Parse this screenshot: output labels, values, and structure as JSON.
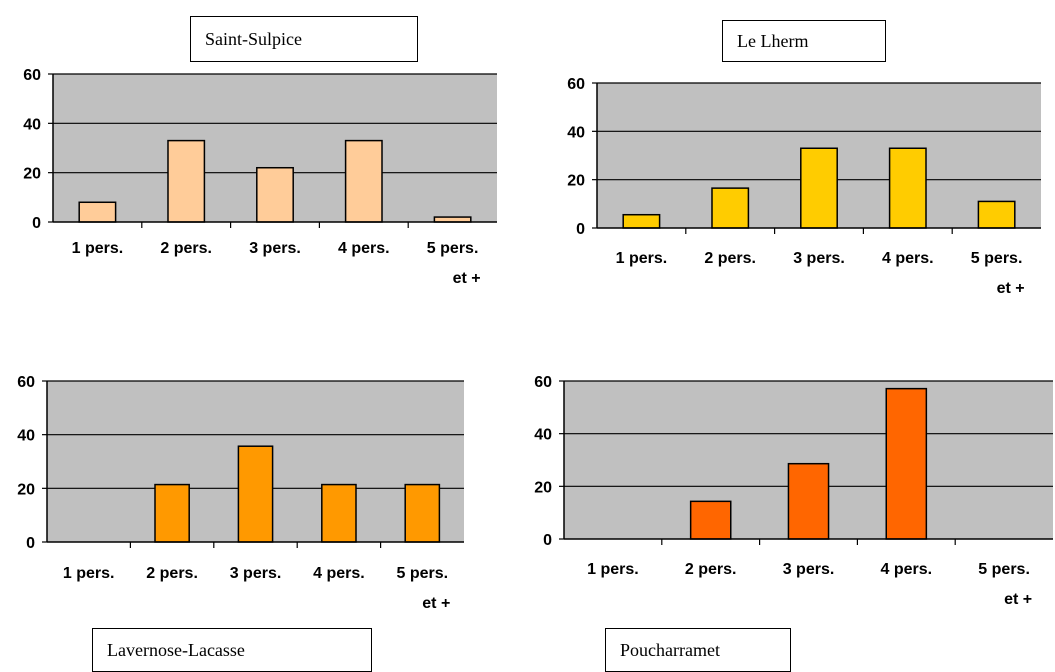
{
  "chart_data": [
    {
      "type": "bar",
      "title": "Saint-Sulpice",
      "categories": [
        "1 pers.",
        "2 pers.",
        "3 pers.",
        "4 pers.",
        "5 pers. et +"
      ],
      "values": [
        8,
        33,
        22,
        33,
        2
      ],
      "ylim": [
        0,
        60
      ],
      "yticks": [
        "0",
        "20",
        "40",
        "60"
      ],
      "color": "#FFCC99",
      "grid": true,
      "xlabel": "",
      "ylabel": ""
    },
    {
      "type": "bar",
      "title": "Le Lherm",
      "categories": [
        "1 pers.",
        "2 pers.",
        "3 pers.",
        "4 pers.",
        "5 pers. et +"
      ],
      "values": [
        5.5,
        16.5,
        33,
        33,
        11
      ],
      "ylim": [
        0,
        60
      ],
      "yticks": [
        "0",
        "20",
        "40",
        "60"
      ],
      "color": "#FFCC00",
      "grid": true,
      "xlabel": "",
      "ylabel": ""
    },
    {
      "type": "bar",
      "title": "Lavernose-Lacasse",
      "categories": [
        "1 pers.",
        "2 pers.",
        "3 pers.",
        "4 pers.",
        "5 pers. et +"
      ],
      "values": [
        0,
        21.4,
        35.7,
        21.4,
        21.4
      ],
      "ylim": [
        0,
        60
      ],
      "yticks": [
        "0",
        "20",
        "40",
        "60"
      ],
      "color": "#FF9900",
      "grid": true,
      "xlabel": "",
      "ylabel": ""
    },
    {
      "type": "bar",
      "title": "Poucharramet",
      "categories": [
        "1 pers.",
        "2 pers.",
        "3 pers.",
        "4 pers.",
        "5 pers. et +"
      ],
      "values": [
        0,
        14.3,
        28.6,
        57.1,
        0
      ],
      "ylim": [
        0,
        60
      ],
      "yticks": [
        "0",
        "20",
        "40",
        "60"
      ],
      "color": "#FF6600",
      "grid": true,
      "xlabel": "",
      "ylabel": ""
    }
  ]
}
